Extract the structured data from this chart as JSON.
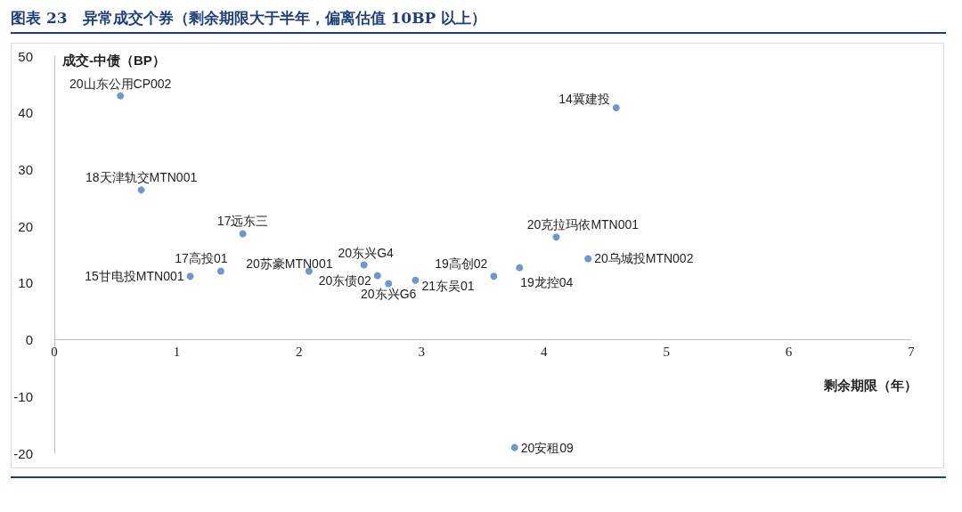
{
  "chart_data": {
    "type": "scatter",
    "title": "图表 23　异常成交个券（剩余期限大于半年，偏离估值 10BP 以上）",
    "xlabel": "剩余期限（年）",
    "ylabel": "成交-中债（BP）",
    "x": [
      0.54,
      0.71,
      1.54,
      1.36,
      1.11,
      2.08,
      2.53,
      2.64,
      2.73,
      2.95,
      3.59,
      3.8,
      4.1,
      4.36,
      4.59,
      3.76
    ],
    "series": [
      {
        "color": "#4a7ebb",
        "values": [
          43,
          26.4,
          18.7,
          12.1,
          11.2,
          12.1,
          13.2,
          11.3,
          9.9,
          10.5,
          11.2,
          12.7,
          18.1,
          14.3,
          40.9,
          -19
        ]
      }
    ],
    "annotations": [
      {
        "text": "20山东公用CP002",
        "x": 0.54,
        "y": 43
      },
      {
        "text": "18天津轨交MTN001",
        "x": 0.71,
        "y": 26.4
      },
      {
        "text": "17远东三",
        "x": 1.54,
        "y": 18.7
      },
      {
        "text": "17高投01",
        "x": 1.36,
        "y": 12.1
      },
      {
        "text": "15甘电投MTN001",
        "x": 1.11,
        "y": 11.2
      },
      {
        "text": "20苏豪MTN001",
        "x": 2.08,
        "y": 12.1
      },
      {
        "text": "20东兴G4",
        "x": 2.53,
        "y": 13.2
      },
      {
        "text": "20东债02",
        "x": 2.64,
        "y": 11.3
      },
      {
        "text": "20东兴G6",
        "x": 2.73,
        "y": 9.9
      },
      {
        "text": "21东吴01",
        "x": 2.95,
        "y": 10.5
      },
      {
        "text": "19高创02",
        "x": 3.59,
        "y": 11.2
      },
      {
        "text": "19龙控04",
        "x": 3.8,
        "y": 12.7
      },
      {
        "text": "20克拉玛依MTN001",
        "x": 4.1,
        "y": 18.1
      },
      {
        "text": "20乌城投MTN002",
        "x": 4.36,
        "y": 14.3
      },
      {
        "text": "14冀建投",
        "x": 4.59,
        "y": 40.9
      },
      {
        "text": "20安租09",
        "x": 3.76,
        "y": -19
      }
    ],
    "xlim": [
      0,
      7
    ],
    "xticks": [
      0,
      1,
      2,
      3,
      4,
      5,
      6,
      7
    ],
    "ylim": [
      -20,
      50
    ],
    "yticks": [
      -20,
      -10,
      0,
      10,
      20,
      30,
      40,
      50
    ],
    "grid": false,
    "marker": "circle"
  }
}
